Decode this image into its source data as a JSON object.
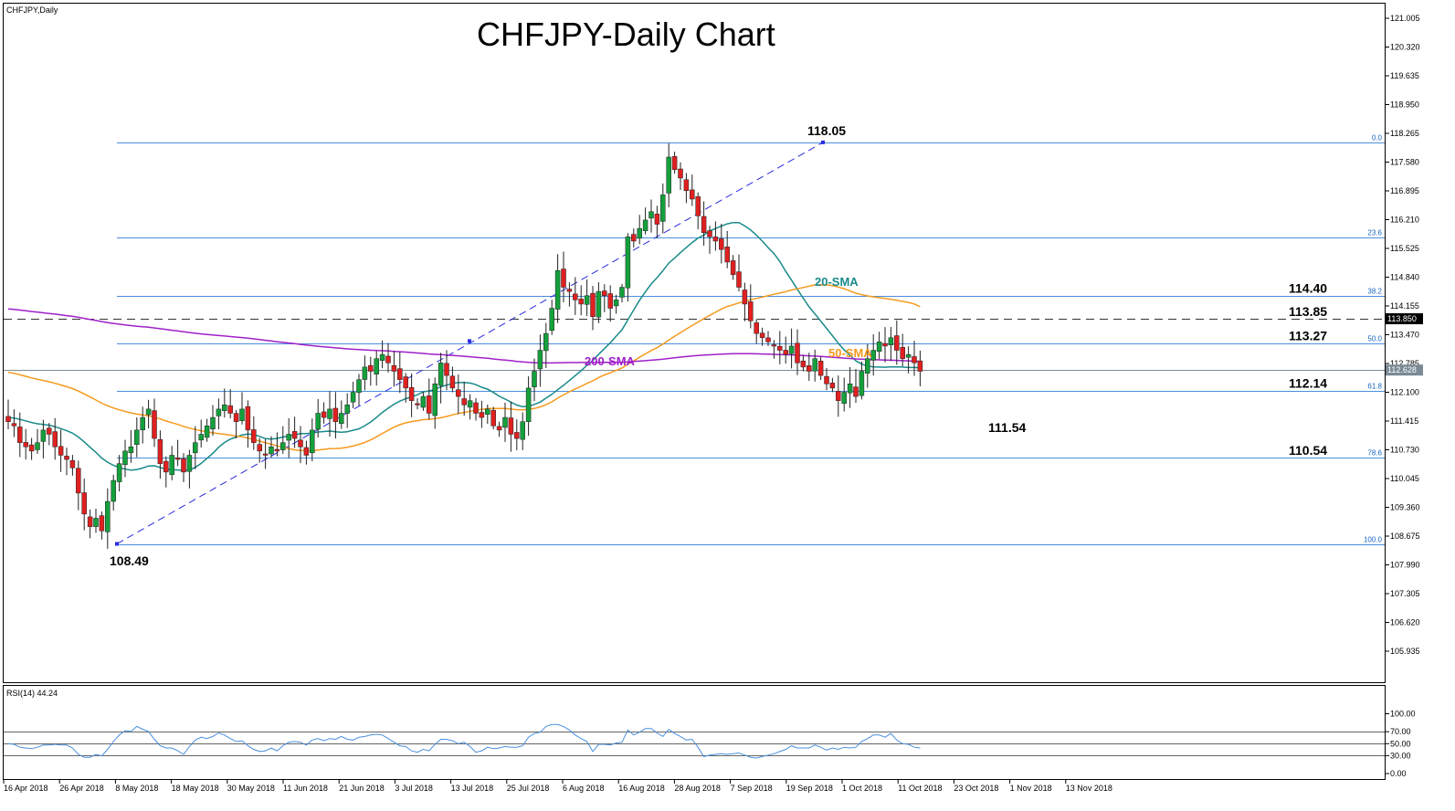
{
  "symbol_label": "CHFJPY,Daily",
  "rsi_label": "RSI(14) 44.24",
  "chart_data": {
    "type": "candlestick",
    "title": "CHFJPY-Daily Chart",
    "ylim": [
      105.3,
      121.2
    ],
    "y_ticks": [
      "121.005",
      "120.320",
      "119.635",
      "118.950",
      "118.265",
      "117.580",
      "116.895",
      "116.210",
      "115.525",
      "114.840",
      "114.155",
      "113.470",
      "112.785",
      "112.100",
      "111.415",
      "110.730",
      "110.045",
      "109.360",
      "108.675",
      "107.990",
      "107.305",
      "106.620",
      "105.935"
    ],
    "x_ticks": [
      "16 Apr 2018",
      "26 Apr 2018",
      "8 May 2018",
      "18 May 2018",
      "30 May 2018",
      "11 Jun 2018",
      "21 Jun 2018",
      "3 Jul 2018",
      "13 Jul 2018",
      "25 Jul 2018",
      "6 Aug 2018",
      "16 Aug 2018",
      "28 Aug 2018",
      "7 Sep 2018",
      "19 Sep 2018",
      "1 Oct 2018",
      "11 Oct 2018",
      "23 Oct 2018",
      "1 Nov 2018",
      "13 Nov 2018"
    ],
    "closes": [
      111.4,
      111.3,
      110.9,
      110.8,
      110.7,
      110.9,
      111.2,
      111.1,
      110.8,
      110.6,
      110.5,
      110.3,
      109.7,
      109.2,
      108.9,
      109.1,
      108.8,
      109.5,
      110.0,
      110.4,
      110.7,
      110.8,
      111.2,
      111.5,
      111.7,
      111.0,
      110.4,
      110.2,
      110.6,
      110.5,
      110.2,
      110.6,
      110.9,
      111.1,
      111.3,
      111.5,
      111.7,
      111.8,
      111.6,
      111.4,
      111.7,
      111.2,
      110.9,
      110.7,
      110.6,
      110.8,
      110.7,
      110.9,
      111.1,
      111.0,
      110.8,
      110.6,
      111.2,
      111.6,
      111.5,
      111.7,
      111.4,
      111.6,
      111.8,
      112.1,
      112.4,
      112.7,
      112.6,
      112.9,
      113.0,
      112.8,
      112.6,
      112.4,
      112.2,
      111.9,
      111.8,
      112.0,
      111.6,
      112.3,
      112.8,
      112.5,
      112.2,
      112.0,
      111.8,
      111.9,
      111.6,
      111.5,
      111.7,
      111.3,
      111.2,
      111.5,
      111.1,
      111.0,
      111.4,
      112.2,
      112.6,
      113.1,
      113.5,
      114.1,
      115.0,
      114.6,
      114.5,
      114.3,
      114.2,
      114.4,
      113.9,
      114.5,
      114.4,
      114.1,
      114.3,
      114.6,
      115.8,
      115.7,
      116.0,
      116.2,
      116.4,
      116.1,
      116.8,
      117.7,
      117.4,
      117.2,
      116.9,
      116.7,
      116.3,
      115.9,
      115.8,
      115.7,
      115.5,
      115.2,
      114.9,
      114.6,
      114.2,
      113.8,
      113.5,
      113.4,
      113.3,
      113.2,
      113.1,
      113.0,
      113.2,
      112.8,
      112.7,
      112.6,
      112.9,
      112.5,
      112.3,
      112.2,
      111.9,
      112.1,
      112.3,
      112.0,
      112.6,
      112.9,
      113.1,
      113.3,
      113.2,
      113.4,
      113.1,
      112.9,
      113.0,
      112.8,
      112.6
    ],
    "series": [
      {
        "name": "20-SMA",
        "color": "#1a8a8a"
      },
      {
        "name": "50-SMA",
        "color": "#f59a1e"
      },
      {
        "name": "200-SMA",
        "color": "#a020c8"
      }
    ],
    "fib_levels": [
      {
        "label": "0.0",
        "value": 118.05
      },
      {
        "label": "23.6",
        "value": 115.79
      },
      {
        "label": "38.2",
        "value": 114.4
      },
      {
        "label": "50.0",
        "value": 113.27
      },
      {
        "label": "61.8",
        "value": 112.14
      },
      {
        "label": "78.6",
        "value": 110.54
      },
      {
        "label": "100.0",
        "value": 108.49
      }
    ],
    "level_labels": [
      "114.40",
      "113.85",
      "113.27",
      "112.14",
      "110.54"
    ],
    "resistance": {
      "label": "113.850",
      "value": 113.85
    },
    "current_price": {
      "label": "112.628",
      "value": 112.628
    },
    "swing_points": [
      {
        "label": "108.49",
        "value": 108.49,
        "date": "8 May 2018"
      },
      {
        "label": "118.05",
        "value": 118.05,
        "date": "19 Sep 2018"
      },
      {
        "label": "111.54",
        "value": 111.54,
        "date": "25 Oct 2018"
      }
    ],
    "colors": {
      "up": "#14a03c",
      "down": "#e02020",
      "fib": "#4a8fdc",
      "rsi": "#4a8fdc"
    },
    "rsi": {
      "ylim": [
        0,
        100
      ],
      "ticks": [
        "100.00",
        "70.00",
        "50.00",
        "30.00",
        "0.00"
      ],
      "levels": [
        70,
        50,
        30
      ],
      "value": 44.24
    }
  }
}
